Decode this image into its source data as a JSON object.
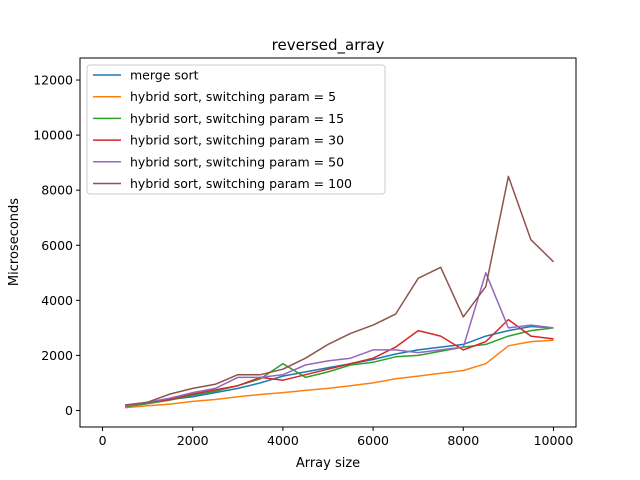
{
  "chart_data": {
    "type": "line",
    "title": "reversed_array",
    "xlabel": "Array size",
    "ylabel": "Microseconds",
    "xlim": [
      -500,
      10500
    ],
    "ylim": [
      -600,
      12800
    ],
    "xticks": [
      0,
      2000,
      4000,
      6000,
      8000,
      10000
    ],
    "xtick_labels": [
      "0",
      "2000",
      "4000",
      "6000",
      "8000",
      "10000"
    ],
    "yticks": [
      0,
      2000,
      4000,
      6000,
      8000,
      10000,
      12000
    ],
    "ytick_labels": [
      "0",
      "2000",
      "4000",
      "6000",
      "8000",
      "10000",
      "12000"
    ],
    "grid": false,
    "legend_position": "upper-left",
    "x": [
      500,
      1000,
      1500,
      2000,
      2500,
      3000,
      3500,
      4000,
      4500,
      5000,
      5500,
      6000,
      6500,
      7000,
      7500,
      8000,
      8500,
      9000,
      9500,
      10000
    ],
    "series": [
      {
        "name": "merge sort",
        "color": "#1f77b4",
        "values": [
          150,
          250,
          400,
          500,
          650,
          800,
          1000,
          1250,
          1400,
          1550,
          1700,
          1850,
          2050,
          2200,
          2300,
          2400,
          2700,
          2900,
          3050,
          3000
        ]
      },
      {
        "name": "hybrid sort, switching param = 5",
        "color": "#ff7f0e",
        "values": [
          100,
          170,
          230,
          330,
          400,
          500,
          580,
          650,
          730,
          800,
          900,
          1000,
          1150,
          1250,
          1350,
          1450,
          1700,
          2350,
          2500,
          2550
        ]
      },
      {
        "name": "hybrid sort, switching param = 15",
        "color": "#2ca02c",
        "values": [
          130,
          250,
          380,
          550,
          700,
          900,
          1150,
          1700,
          1200,
          1400,
          1650,
          1750,
          1950,
          2000,
          2150,
          2300,
          2400,
          2700,
          2900,
          3000
        ]
      },
      {
        "name": "hybrid sort, switching param = 30",
        "color": "#d62728",
        "values": [
          150,
          300,
          400,
          600,
          750,
          900,
          1200,
          1100,
          1300,
          1500,
          1700,
          1900,
          2300,
          2900,
          2700,
          2200,
          2500,
          3300,
          2700,
          2600
        ]
      },
      {
        "name": "hybrid sort, switching param = 50",
        "color": "#9467bd",
        "values": [
          150,
          300,
          450,
          650,
          800,
          1200,
          1200,
          1300,
          1650,
          1800,
          1900,
          2200,
          2200,
          2100,
          2200,
          2300,
          5000,
          3000,
          3100,
          3000
        ]
      },
      {
        "name": "hybrid sort, switching param = 100",
        "color": "#8c564b",
        "values": [
          200,
          300,
          600,
          800,
          950,
          1300,
          1300,
          1500,
          1900,
          2400,
          2800,
          3100,
          3500,
          4800,
          5200,
          3400,
          4500,
          8500,
          6200,
          5400
        ]
      }
    ]
  }
}
